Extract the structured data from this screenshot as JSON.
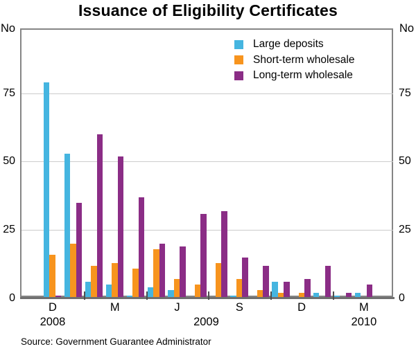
{
  "title": "Issuance of Eligibility Certificates",
  "unit_left": "No",
  "unit_right": "No",
  "source": "Source: Government Guarantee Administrator",
  "colors": {
    "large_deposits": "#45B5E0",
    "short_term_wholesale": "#F7941E",
    "long_term_wholesale": "#8B2D86",
    "gridline": "#CCCCCC",
    "axis_box": "#858585",
    "text": "#000000"
  },
  "chart_data": {
    "type": "bar",
    "title": "Issuance of Eligibility Certificates",
    "ylabel": "No",
    "grid": true,
    "legend_position": "top-right",
    "yticks": [
      0,
      25,
      50,
      75
    ],
    "ylim": [
      0,
      98.7
    ],
    "categories": [
      "Dec 2008",
      "Jan 2009",
      "Feb 2009",
      "Mar 2009",
      "Apr 2009",
      "May 2009",
      "Jun 2009",
      "Jul 2009",
      "Aug 2009",
      "Sep 2009",
      "Oct 2009",
      "Nov 2009",
      "Dec 2009",
      "Jan 2010",
      "Feb 2010",
      "Mar 2010"
    ],
    "series": [
      {
        "name": "Large deposits",
        "color": "#45B5E0",
        "values": [
          79,
          53,
          6,
          5,
          1,
          4,
          3,
          0,
          0,
          1,
          0,
          6,
          0,
          2,
          1,
          2
        ]
      },
      {
        "name": "Short-term wholesale",
        "color": "#F7941E",
        "values": [
          16,
          20,
          12,
          13,
          11,
          18,
          7,
          5,
          13,
          7,
          3,
          2,
          2,
          0,
          0,
          0
        ]
      },
      {
        "name": "Long-term wholesale",
        "color": "#8B2D86",
        "values": [
          1,
          35,
          60,
          52,
          37,
          20,
          19,
          31,
          32,
          15,
          12,
          6,
          7,
          12,
          2,
          5
        ]
      }
    ],
    "month_tick_labels": [
      {
        "month_index": 0,
        "label": "D"
      },
      {
        "month_index": 3,
        "label": "M"
      },
      {
        "month_index": 6,
        "label": "J"
      },
      {
        "month_index": 9,
        "label": "S"
      },
      {
        "month_index": 12,
        "label": "D"
      },
      {
        "month_index": 15,
        "label": "M"
      }
    ],
    "year_labels": [
      {
        "label": "2008",
        "month_index": 0
      },
      {
        "label": "2009",
        "month_index": 7.4
      },
      {
        "label": "2010",
        "month_index": 15
      }
    ],
    "quarter_tick_boundaries": [
      2,
      5,
      8,
      11,
      14
    ]
  }
}
